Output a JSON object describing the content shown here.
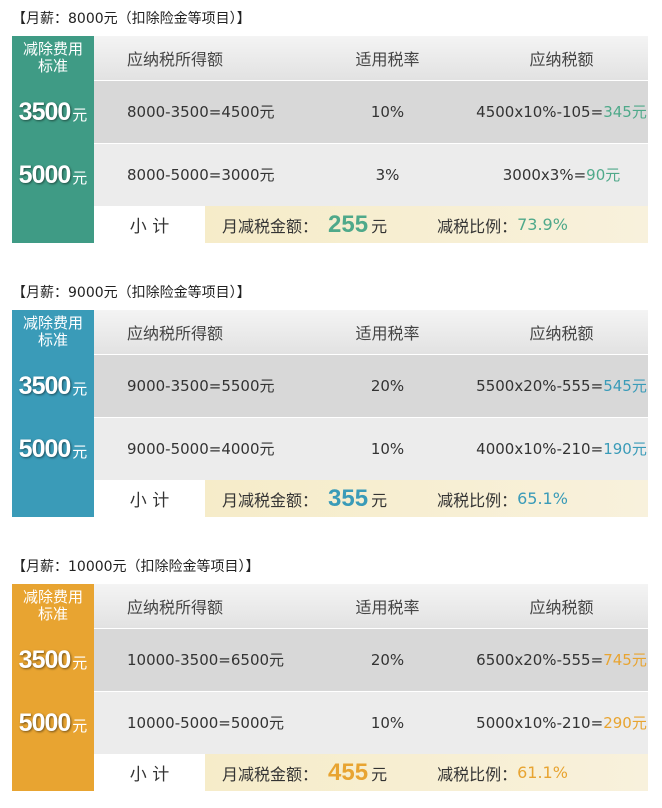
{
  "sections": [
    {
      "heading": "【月薪：8000元（扣除险金等项目）】",
      "table": {
        "corner": "减除费用标准",
        "columns": [
          "应纳税所得额",
          "适用税率",
          "应纳税额"
        ],
        "rows": [
          {
            "deduction": "3500",
            "unit": "元",
            "taxable": "8000-3500=4500元",
            "rate": "10%",
            "formula": "4500x10%-105=",
            "tax": "345元"
          },
          {
            "deduction": "5000",
            "unit": "元",
            "taxable": "8000-5000=3000元",
            "rate": "3%",
            "formula": "3000x3%=",
            "tax": "90元"
          }
        ],
        "footer": {
          "label": "小 计",
          "saving_label": "月减税金额：",
          "saving": "255",
          "saving_unit": "元",
          "ratio_label": "减税比例：",
          "ratio": "73.9%"
        }
      }
    },
    {
      "heading": "【月薪：9000元（扣除险金等项目）】",
      "table": {
        "corner": "减除费用标准",
        "columns": [
          "应纳税所得额",
          "适用税率",
          "应纳税额"
        ],
        "rows": [
          {
            "deduction": "3500",
            "unit": "元",
            "taxable": "9000-3500=5500元",
            "rate": "20%",
            "formula": "5500x20%-555=",
            "tax": "545元"
          },
          {
            "deduction": "5000",
            "unit": "元",
            "taxable": "9000-5000=4000元",
            "rate": "10%",
            "formula": "4000x10%-210=",
            "tax": "190元"
          }
        ],
        "footer": {
          "label": "小 计",
          "saving_label": "月减税金额：",
          "saving": "355",
          "saving_unit": "元",
          "ratio_label": "减税比例：",
          "ratio": "65.1%"
        }
      }
    },
    {
      "heading": "【月薪：10000元（扣除险金等项目）】",
      "table": {
        "corner": "减除费用标准",
        "columns": [
          "应纳税所得额",
          "适用税率",
          "应纳税额"
        ],
        "rows": [
          {
            "deduction": "3500",
            "unit": "元",
            "taxable": "10000-3500=6500元",
            "rate": "20%",
            "formula": "6500x20%-555=",
            "tax": "745元"
          },
          {
            "deduction": "5000",
            "unit": "元",
            "taxable": "10000-5000=5000元",
            "rate": "10%",
            "formula": "5000x10%-210=",
            "tax": "290元"
          }
        ],
        "footer": {
          "label": "小 计",
          "saving_label": "月减税金额：",
          "saving": "455",
          "saving_unit": "元",
          "ratio_label": "减税比例：",
          "ratio": "61.1%"
        }
      }
    }
  ]
}
